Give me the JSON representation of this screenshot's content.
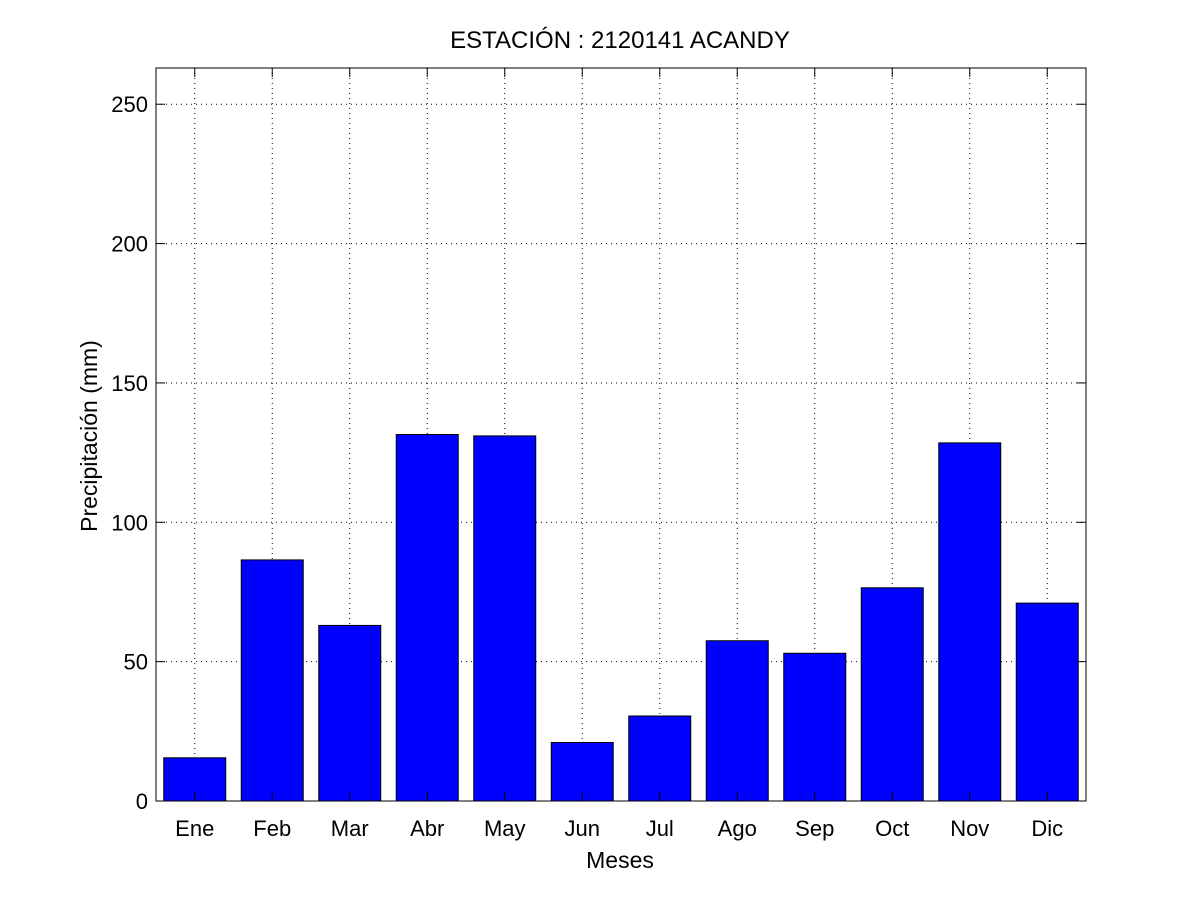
{
  "chart_data": {
    "type": "bar",
    "title": "ESTACIÓN :  2120141  ACANDY",
    "xlabel": "Meses",
    "ylabel": "Precipitación (mm)",
    "categories": [
      "Ene",
      "Feb",
      "Mar",
      "Abr",
      "May",
      "Jun",
      "Jul",
      "Ago",
      "Sep",
      "Oct",
      "Nov",
      "Dic"
    ],
    "values": [
      15.5,
      86.5,
      63,
      131.5,
      131,
      21,
      30.5,
      57.5,
      53,
      76.5,
      128.5,
      71
    ],
    "ylim": [
      0,
      263
    ],
    "yticks": [
      0,
      50,
      100,
      150,
      200,
      250
    ],
    "grid": true,
    "legend": "none",
    "bar_color": "#0000ff"
  }
}
